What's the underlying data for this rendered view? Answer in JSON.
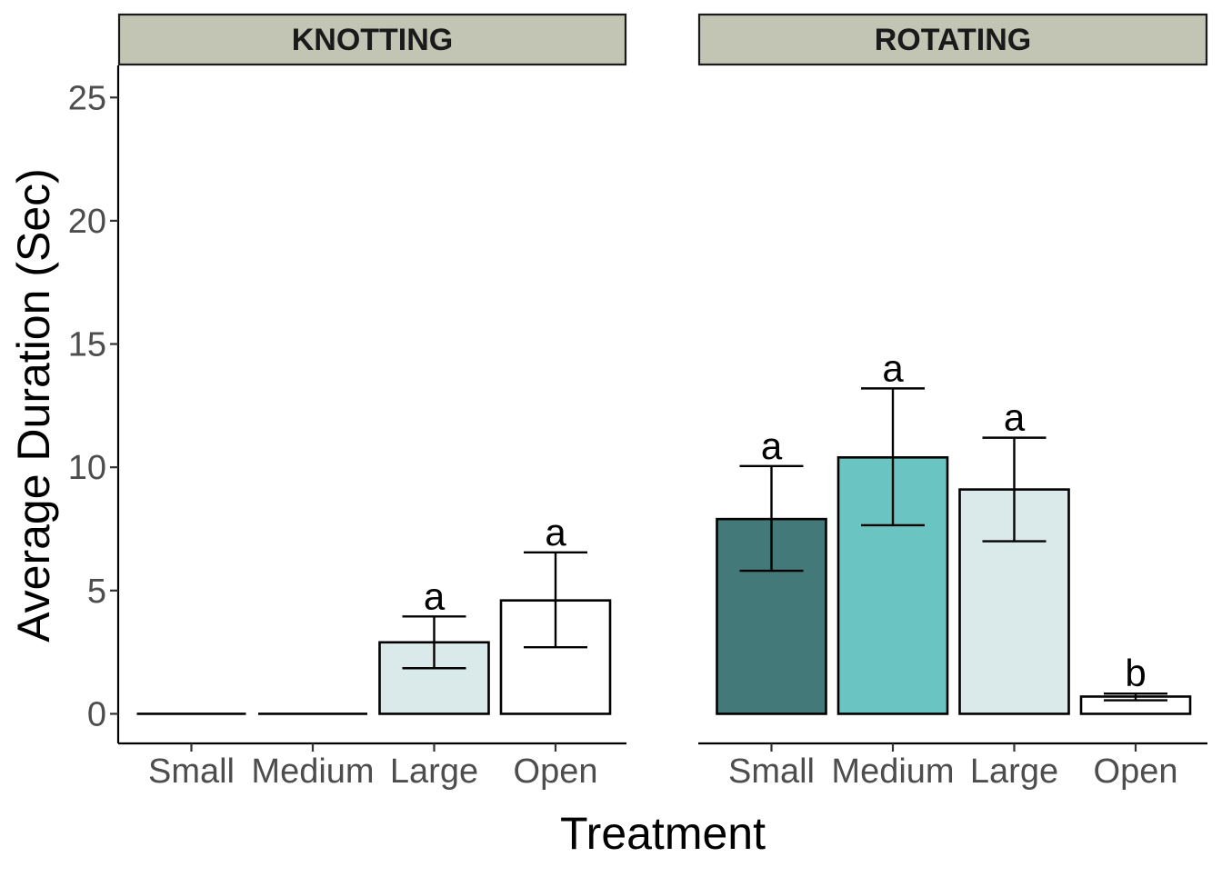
{
  "chart_data": {
    "type": "bar",
    "xlabel": "Treatment",
    "ylabel": "Average Duration (Sec)",
    "ylim": [
      -1.2,
      26.3
    ],
    "y_ticks": [
      0,
      5,
      10,
      15,
      20,
      25
    ],
    "categories": [
      "Small",
      "Medium",
      "Large",
      "Open"
    ],
    "colors": {
      "Small": "#437a79",
      "Medium": "#6ac4c2",
      "Large": "#daeaea",
      "Open": "#ffffff",
      "strip_fill": "#c2c4b4",
      "outline": "#000000"
    },
    "panels": [
      {
        "title": "KNOTTING",
        "values": [
          0,
          0,
          2.9,
          4.6
        ],
        "error_low": [
          0,
          0,
          1.85,
          2.7
        ],
        "error_high": [
          0,
          0,
          3.95,
          6.55
        ],
        "labels": [
          "",
          "",
          "a",
          "a"
        ]
      },
      {
        "title": "ROTATING",
        "values": [
          7.9,
          10.4,
          9.1,
          0.7
        ],
        "error_low": [
          5.8,
          7.65,
          7.0,
          0.55
        ],
        "error_high": [
          10.05,
          13.2,
          11.2,
          0.82
        ],
        "labels": [
          "a",
          "a",
          "a",
          "b"
        ]
      }
    ],
    "grid": false,
    "legend": "none"
  }
}
